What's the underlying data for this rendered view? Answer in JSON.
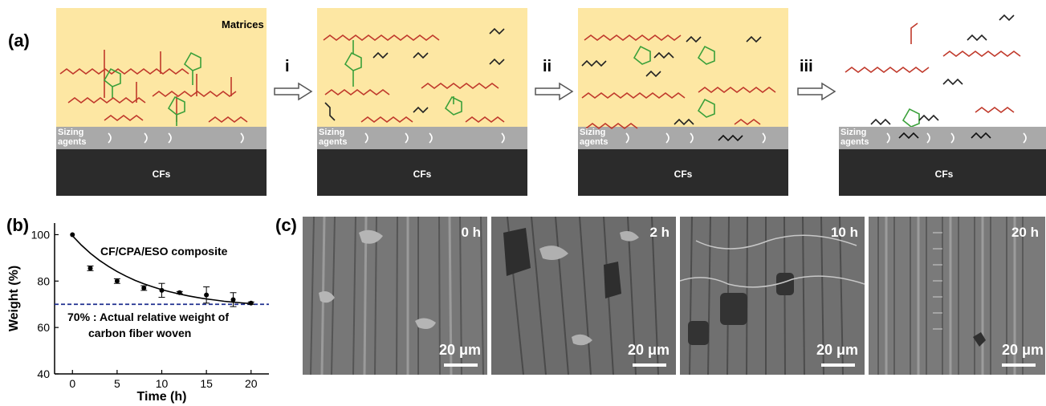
{
  "panel_a": {
    "label": "(a)",
    "matrices_label": "Matrices",
    "sizing_label": "Sizing agents",
    "cf_label": "CFs",
    "steps": [
      "i",
      "ii",
      "iii"
    ]
  },
  "panel_b": {
    "label": "(b)"
  },
  "panel_c": {
    "label": "(c)",
    "images": [
      {
        "time": "0 h",
        "scale": "20 μm"
      },
      {
        "time": "2 h",
        "scale": "20 μm"
      },
      {
        "time": "10 h",
        "scale": "20 μm"
      },
      {
        "time": "20 h",
        "scale": "20 μm"
      }
    ]
  },
  "colors": {
    "matrix": "#fde7a3",
    "sizing": "#a9a9a9",
    "fiber": "#2b2b2b",
    "red_chain": "#c0392b",
    "green_unit": "#3aa03a",
    "reference_line": "#1f2f8f"
  },
  "chart_data": {
    "type": "scatter",
    "xlabel": "Time (h)",
    "ylabel": "Weight (%)",
    "xlim": [
      -2,
      22
    ],
    "ylim": [
      40,
      105
    ],
    "xticks": [
      0,
      5,
      10,
      15,
      20
    ],
    "yticks": [
      40,
      60,
      80,
      100
    ],
    "series": [
      {
        "name": "CF/CPA/ESO composite",
        "x": [
          0,
          2,
          5,
          8,
          10,
          12,
          15,
          18,
          20
        ],
        "y": [
          100,
          85.5,
          80,
          77,
          76,
          75,
          74,
          72,
          70.5
        ],
        "err": [
          0,
          1,
          1,
          1,
          3,
          0.5,
          3.5,
          3,
          0.5
        ]
      }
    ],
    "fit_curve": {
      "x": [
        0,
        1,
        2,
        3,
        4,
        5,
        6,
        7,
        8,
        9,
        10,
        11,
        12,
        13,
        14,
        15,
        16,
        17,
        18,
        19,
        20
      ],
      "y": [
        99.5,
        95.5,
        92.0,
        89.0,
        86.4,
        84.1,
        82.1,
        80.3,
        78.8,
        77.5,
        76.3,
        75.3,
        74.4,
        73.6,
        72.9,
        72.3,
        71.8,
        71.3,
        70.9,
        70.6,
        70.3
      ]
    },
    "reference_line": {
      "y": 70,
      "style": "dashed"
    },
    "annotation": "70% : Actual relative weight of carbon fiber woven",
    "annotation_lines": [
      "70% : Actual relative weight of",
      "carbon fiber woven"
    ]
  }
}
